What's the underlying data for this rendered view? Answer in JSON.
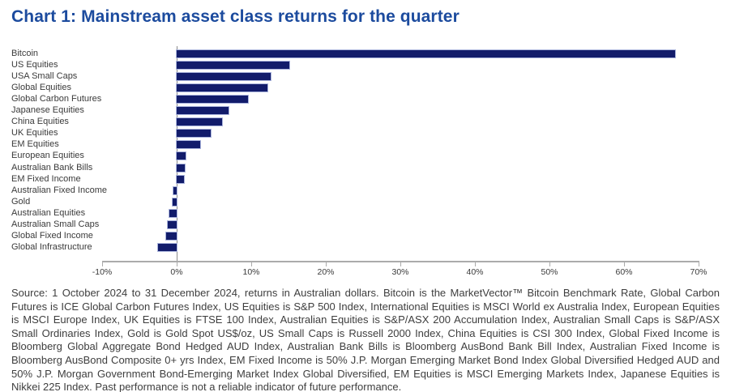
{
  "page": {
    "title": "Chart 1: Mainstream asset class returns for the quarter",
    "source_note": "Source: 1 October 2024 to 31 December 2024, returns in Australian dollars. Bitcoin is the MarketVector™ Bitcoin Benchmark Rate, Global Carbon Futures is ICE Global Carbon Futures Index, US Equities is S&P 500 Index, International Equities is MSCI World ex Australia Index, European Equities is MSCI Europe Index, UK Equities is FTSE 100 Index, Australian Equities is S&P/ASX 200 Accumulation Index, Australian Small Caps is S&P/ASX Small Ordinaries Index, Gold is Gold Spot US$/oz, US Small Caps is Russell 2000 Index, China Equities is CSI 300 Index, Global Fixed Income is Bloomberg Global Aggregate Bond Hedged AUD Index, Australian Bank Bills is Bloomberg AusBond Bank Bill Index, Australian Fixed Income is Bloomberg AusBond Composite 0+ yrs Index, EM Fixed Income is 50% J.P. Morgan Emerging Market Bond Index Global Diversified Hedged AUD and 50% J.P. Morgan Government Bond-Emerging Market Index Global Diversified, EM Equities is MSCI Emerging Markets Index, Japanese Equities is Nikkei 225 Index. Past performance is not a reliable indicator of future performance."
  },
  "chart_data": {
    "type": "bar",
    "orientation": "horizontal",
    "title": "Chart 1: Mainstream asset class returns for the quarter",
    "categories": [
      "Bitcoin",
      "US Equities",
      "USA Small Caps",
      "Global Equities",
      "Global Carbon Futures",
      "Japanese Equities",
      "China Equities",
      "UK Equities",
      "EM Equities",
      "European Equities",
      "Australian Bank Bills",
      "EM Fixed Income",
      "Australian Fixed Income",
      "Gold",
      "Australian Equities",
      "Australian Small Caps",
      "Global Fixed Income",
      "Global Infrastructure"
    ],
    "values": [
      66.8,
      15.1,
      12.6,
      12.2,
      9.6,
      7.0,
      6.1,
      4.6,
      3.2,
      1.2,
      1.1,
      1.0,
      -0.4,
      -0.5,
      -1.0,
      -1.2,
      -1.4,
      -2.5
    ],
    "value_unit": "%",
    "xlabel": "",
    "ylabel": "",
    "xlim": [
      -10,
      70
    ],
    "x_tick_values": [
      -10,
      0,
      10,
      20,
      30,
      40,
      50,
      60,
      70
    ],
    "x_tick_labels": [
      "-10%",
      "0%",
      "10%",
      "20%",
      "30%",
      "40%",
      "50%",
      "60%",
      "70%"
    ],
    "grid": "zero-line-only",
    "legend": "none",
    "colors": {
      "bar_fill": "#121c6b",
      "bar_border": "#a9b3dc",
      "zero_line": "#8c8c8c",
      "axis": "#ababab",
      "title": "#1c4b9e",
      "text": "#3a3a3a"
    }
  }
}
